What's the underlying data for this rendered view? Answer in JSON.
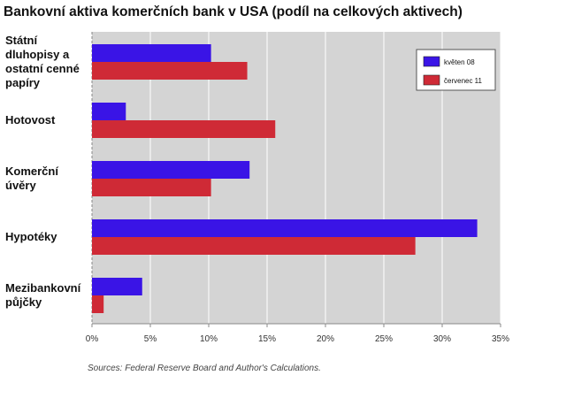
{
  "colors": {
    "plot_bg": "#d4d4d4",
    "grid": "#ffffff",
    "series_1": "#3a14e6",
    "series_2": "#cf2a36"
  },
  "source": "Sources: Federal Reserve Board and Author's Calculations.",
  "chart_data": {
    "type": "bar",
    "orientation": "horizontal",
    "title": "Bankovní aktiva komerčních bank v USA (podíl na celkových aktivech)",
    "xlabel": "",
    "ylabel": "",
    "xlim": [
      0,
      35
    ],
    "xticks": [
      "0%",
      "5%",
      "10%",
      "15%",
      "20%",
      "25%",
      "30%",
      "35%"
    ],
    "grid": true,
    "legend_position": "top-right",
    "categories": [
      [
        "Státní",
        "dluhopisy a",
        "ostatní cenné",
        "papíry"
      ],
      [
        "Hotovost"
      ],
      [
        "Komerční",
        "úvěry"
      ],
      [
        "Hypotéky"
      ],
      [
        "Mezibankovní",
        "půjčky"
      ]
    ],
    "series": [
      {
        "name": "květen 08",
        "values": [
          10.2,
          2.9,
          13.5,
          33.0,
          4.3
        ]
      },
      {
        "name": "červenec 11",
        "values": [
          13.3,
          15.7,
          10.2,
          27.7,
          1.0
        ]
      }
    ]
  }
}
